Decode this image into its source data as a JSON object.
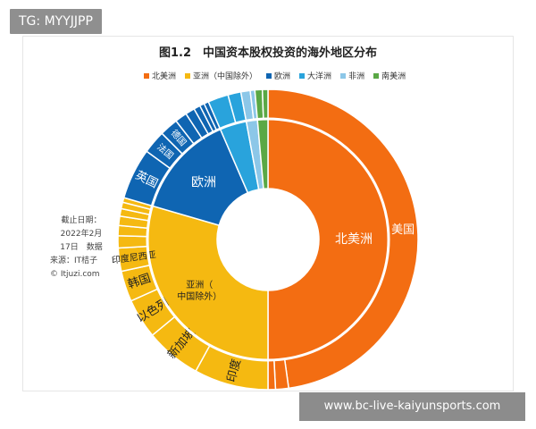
{
  "watermark_top": "TG: MYYJJPP",
  "watermark_bottom": "www.bc-live-kaiyunsports.com",
  "note": {
    "line1": "截止日期：",
    "line2": "2022年2月",
    "line3": "17日　数据",
    "line4": "来源：IT桔子",
    "line5": "© Itjuzi.com"
  },
  "chart_data": {
    "type": "pie",
    "variant": "sunburst",
    "title": "图1.2　中国资本股权投资的海外地区分布",
    "legend": [
      {
        "name": "北美洲",
        "color": "#f36d12"
      },
      {
        "name": "亚洲（中国除外）",
        "color": "#f5b911"
      },
      {
        "name": "欧洲",
        "color": "#0f65b2"
      },
      {
        "name": "大洋洲",
        "color": "#29a3dc"
      },
      {
        "name": "非洲",
        "color": "#8cc7e8"
      },
      {
        "name": "南美洲",
        "color": "#5aa845"
      }
    ],
    "inner": [
      {
        "name": "北美洲",
        "label": "北美洲",
        "value": 50.0,
        "color": "#f36d12"
      },
      {
        "name": "亚洲（中国除外）",
        "label": "亚洲（中国除外）",
        "value": 29.5,
        "color": "#f5b911"
      },
      {
        "name": "欧洲",
        "label": "欧洲",
        "value": 14.0,
        "color": "#0f65b2"
      },
      {
        "name": "大洋洲",
        "label": "",
        "value": 3.6,
        "color": "#29a3dc"
      },
      {
        "name": "非洲",
        "label": "",
        "value": 1.5,
        "color": "#8cc7e8"
      },
      {
        "name": "南美洲",
        "label": "",
        "value": 1.4,
        "color": "#5aa845"
      }
    ],
    "outer": [
      {
        "label": "美国",
        "value": 47.8,
        "color": "#f36d12"
      },
      {
        "label": "",
        "value": 1.4,
        "color": "#f36d12"
      },
      {
        "label": "",
        "value": 0.8,
        "color": "#f36d12"
      },
      {
        "label": "印度",
        "value": 8.0,
        "color": "#f5b911"
      },
      {
        "label": "新加坡",
        "value": 6.0,
        "color": "#f5b911"
      },
      {
        "label": "以色列",
        "value": 4.3,
        "color": "#f5b911"
      },
      {
        "label": "韩国",
        "value": 3.3,
        "color": "#f5b911"
      },
      {
        "label": "印度尼西亚",
        "value": 2.5,
        "color": "#f5b911"
      },
      {
        "label": "",
        "value": 1.3,
        "color": "#f5b911"
      },
      {
        "label": "",
        "value": 1.1,
        "color": "#f5b911"
      },
      {
        "label": "",
        "value": 1.0,
        "color": "#f5b911"
      },
      {
        "label": "",
        "value": 0.8,
        "color": "#f5b911"
      },
      {
        "label": "",
        "value": 0.7,
        "color": "#f5b911"
      },
      {
        "label": "",
        "value": 0.5,
        "color": "#f5b911"
      },
      {
        "label": "英国",
        "value": 5.5,
        "color": "#0f65b2"
      },
      {
        "label": "法国",
        "value": 2.5,
        "color": "#0f65b2"
      },
      {
        "label": "德国",
        "value": 2.0,
        "color": "#0f65b2"
      },
      {
        "label": "",
        "value": 1.3,
        "color": "#0f65b2"
      },
      {
        "label": "",
        "value": 1.0,
        "color": "#0f65b2"
      },
      {
        "label": "",
        "value": 0.7,
        "color": "#0f65b2"
      },
      {
        "label": "",
        "value": 0.5,
        "color": "#0f65b2"
      },
      {
        "label": "",
        "value": 0.5,
        "color": "#0f65b2"
      },
      {
        "label": "",
        "value": 2.2,
        "color": "#29a3dc"
      },
      {
        "label": "",
        "value": 1.4,
        "color": "#29a3dc"
      },
      {
        "label": "",
        "value": 1.0,
        "color": "#8cc7e8"
      },
      {
        "label": "",
        "value": 0.5,
        "color": "#8cc7e8"
      },
      {
        "label": "",
        "value": 0.8,
        "color": "#5aa845"
      },
      {
        "label": "",
        "value": 0.6,
        "color": "#5aa845"
      }
    ]
  }
}
